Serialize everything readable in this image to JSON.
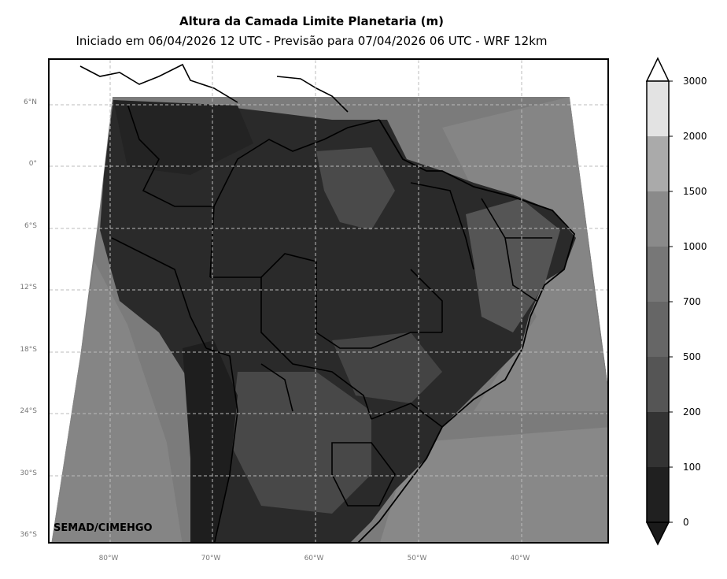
{
  "title": "Altura da Camada Limite Planetaria (m)",
  "subtitle": "Iniciado em 06/04/2026 12 UTC - Previsão para 07/04/2026 06 UTC - WRF 12km",
  "credit": "SEMAD/CIMEHGO",
  "lat_labels": [
    "6°N",
    "0°",
    "6°S",
    "12°S",
    "18°S",
    "24°S",
    "30°S",
    "36°S"
  ],
  "lon_labels": [
    "80°W",
    "70°W",
    "60°W",
    "50°W",
    "40°W"
  ],
  "colorbar": {
    "ticks": [
      "0",
      "100",
      "200",
      "500",
      "700",
      "1000",
      "1500",
      "2000",
      "3000"
    ],
    "colors": [
      "#202020",
      "#333333",
      "#555555",
      "#666666",
      "#777777",
      "#8a8a8a",
      "#aaaaaa",
      "#e3e3e3"
    ],
    "extend": "both",
    "under_color": "#1a1a1a",
    "over_color": "#ffffff"
  },
  "map": {
    "ocean_color": "#7a7a7a",
    "land_dark_color": "#252525",
    "land_mid_color": "#3a3a3a",
    "gridlines": "dashed"
  }
}
